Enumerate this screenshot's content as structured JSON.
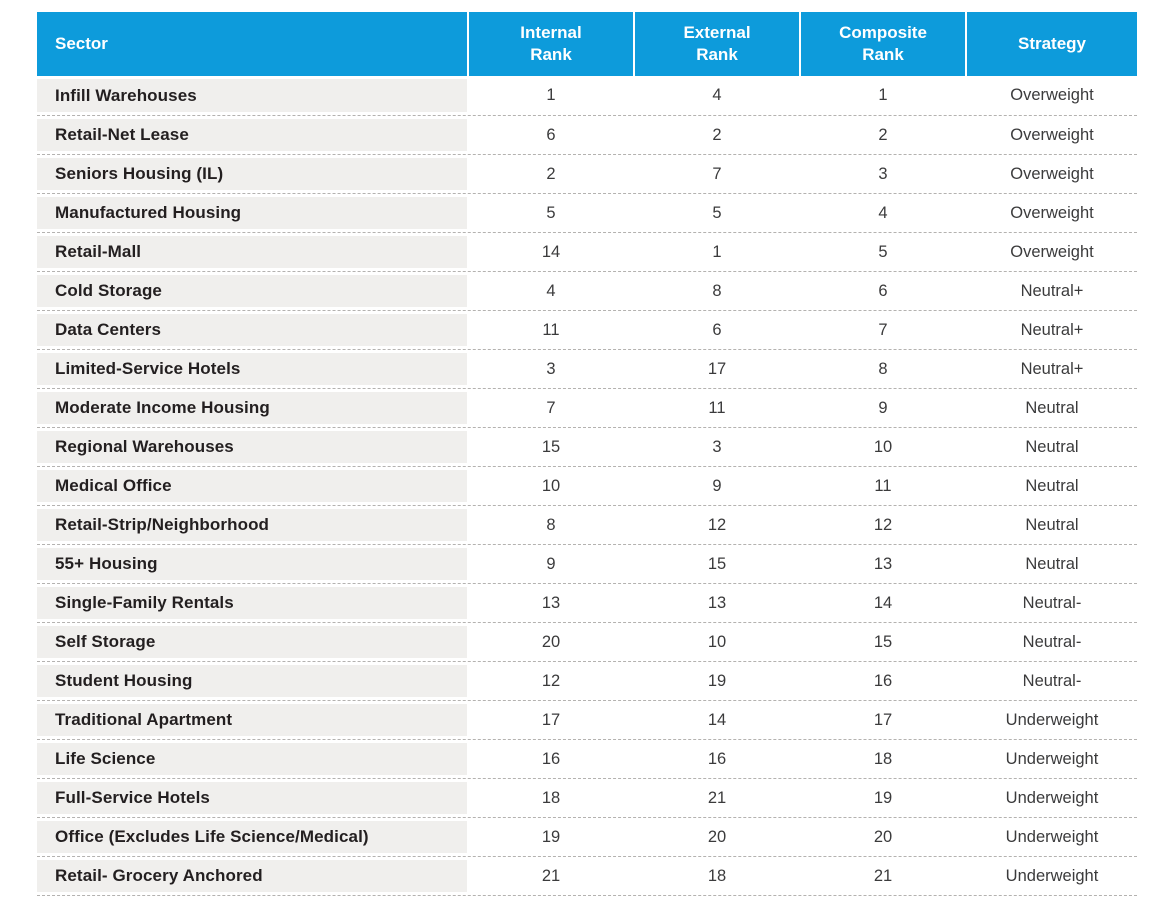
{
  "accent_color": "#0d9bdb",
  "sector_cell_color": "#f0efed",
  "separator_color": "#b4b2b0",
  "chart_data": {
    "type": "table",
    "title": "",
    "columns": [
      "Sector",
      "Internal Rank",
      "External Rank",
      "Composite Rank",
      "Strategy"
    ],
    "header": {
      "sector": "Sector",
      "internal": "Internal\nRank",
      "external": "External\nRank",
      "composite": "Composite\nRank",
      "strategy": "Strategy"
    },
    "rows": [
      {
        "sector": "Infill Warehouses",
        "internal": 1,
        "external": 4,
        "composite": 1,
        "strategy": "Overweight"
      },
      {
        "sector": "Retail-Net Lease",
        "internal": 6,
        "external": 2,
        "composite": 2,
        "strategy": "Overweight"
      },
      {
        "sector": "Seniors Housing (IL)",
        "internal": 2,
        "external": 7,
        "composite": 3,
        "strategy": "Overweight"
      },
      {
        "sector": "Manufactured Housing",
        "internal": 5,
        "external": 5,
        "composite": 4,
        "strategy": "Overweight"
      },
      {
        "sector": "Retail-Mall",
        "internal": 14,
        "external": 1,
        "composite": 5,
        "strategy": "Overweight"
      },
      {
        "sector": "Cold Storage",
        "internal": 4,
        "external": 8,
        "composite": 6,
        "strategy": "Neutral+"
      },
      {
        "sector": "Data Centers",
        "internal": 11,
        "external": 6,
        "composite": 7,
        "strategy": "Neutral+"
      },
      {
        "sector": "Limited-Service Hotels",
        "internal": 3,
        "external": 17,
        "composite": 8,
        "strategy": "Neutral+"
      },
      {
        "sector": "Moderate Income Housing",
        "internal": 7,
        "external": 11,
        "composite": 9,
        "strategy": "Neutral"
      },
      {
        "sector": "Regional Warehouses",
        "internal": 15,
        "external": 3,
        "composite": 10,
        "strategy": "Neutral"
      },
      {
        "sector": "Medical Office",
        "internal": 10,
        "external": 9,
        "composite": 11,
        "strategy": "Neutral"
      },
      {
        "sector": "Retail-Strip/Neighborhood",
        "internal": 8,
        "external": 12,
        "composite": 12,
        "strategy": "Neutral"
      },
      {
        "sector": "55+ Housing",
        "internal": 9,
        "external": 15,
        "composite": 13,
        "strategy": "Neutral"
      },
      {
        "sector": "Single-Family Rentals",
        "internal": 13,
        "external": 13,
        "composite": 14,
        "strategy": "Neutral-"
      },
      {
        "sector": "Self Storage",
        "internal": 20,
        "external": 10,
        "composite": 15,
        "strategy": "Neutral-"
      },
      {
        "sector": "Student Housing",
        "internal": 12,
        "external": 19,
        "composite": 16,
        "strategy": "Neutral-"
      },
      {
        "sector": "Traditional Apartment",
        "internal": 17,
        "external": 14,
        "composite": 17,
        "strategy": "Underweight"
      },
      {
        "sector": "Life Science",
        "internal": 16,
        "external": 16,
        "composite": 18,
        "strategy": "Underweight"
      },
      {
        "sector": "Full-Service Hotels",
        "internal": 18,
        "external": 21,
        "composite": 19,
        "strategy": "Underweight"
      },
      {
        "sector": "Office (Excludes Life Science/Medical)",
        "internal": 19,
        "external": 20,
        "composite": 20,
        "strategy": "Underweight"
      },
      {
        "sector": "Retail- Grocery Anchored",
        "internal": 21,
        "external": 18,
        "composite": 21,
        "strategy": "Underweight"
      }
    ]
  }
}
